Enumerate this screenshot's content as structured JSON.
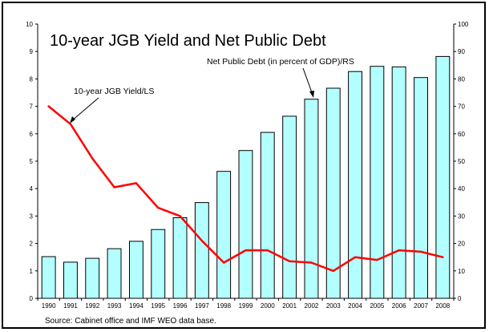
{
  "chart_data": {
    "type": "bar+line",
    "title": "10-year JGB Yield and Net Public Debt",
    "categories": [
      "1990",
      "1991",
      "1992",
      "1993",
      "1994",
      "1995",
      "1996",
      "1997",
      "1998",
      "1999",
      "2000",
      "2001",
      "2002",
      "2003",
      "2004",
      "2005",
      "2006",
      "2007",
      "2008"
    ],
    "series": [
      {
        "name": "Net Public Debt (in percent of GDP)/RS",
        "type": "bar",
        "axis": "right",
        "values": [
          15.2,
          13.2,
          14.6,
          18.1,
          20.8,
          25.1,
          29.4,
          34.9,
          46.3,
          53.9,
          60.5,
          66.4,
          72.6,
          76.6,
          82.7,
          84.6,
          84.4,
          80.5,
          88.2
        ]
      },
      {
        "name": "10-year JGB Yield/LS",
        "type": "line",
        "axis": "left",
        "values": [
          7.0,
          6.35,
          5.1,
          4.05,
          4.2,
          3.3,
          3.0,
          2.1,
          1.3,
          1.75,
          1.75,
          1.35,
          1.3,
          1.0,
          1.5,
          1.4,
          1.75,
          1.7,
          1.5
        ]
      }
    ],
    "y_left": {
      "range": [
        0,
        10
      ],
      "ticks": [
        "0",
        "1",
        "2",
        "3",
        "4",
        "5",
        "6",
        "7",
        "8",
        "9",
        "10"
      ]
    },
    "y_right": {
      "range": [
        0,
        100
      ],
      "ticks": [
        "0",
        "10",
        "20",
        "30",
        "40",
        "50",
        "60",
        "70",
        "80",
        "90",
        "100"
      ]
    },
    "annotations": [
      {
        "text": "10-year JGB Yield/LS",
        "points_to": "line"
      },
      {
        "text": "Net Public Debt (in percent of GDP)/RS",
        "points_to": "bars"
      }
    ],
    "source": "Source: Cabinet office and IMF WEO data base.",
    "colors": {
      "bar_fill": "#b3ffff",
      "bar_stroke": "#000000",
      "line": "#ff0000"
    },
    "grid": false,
    "legend": "none"
  }
}
